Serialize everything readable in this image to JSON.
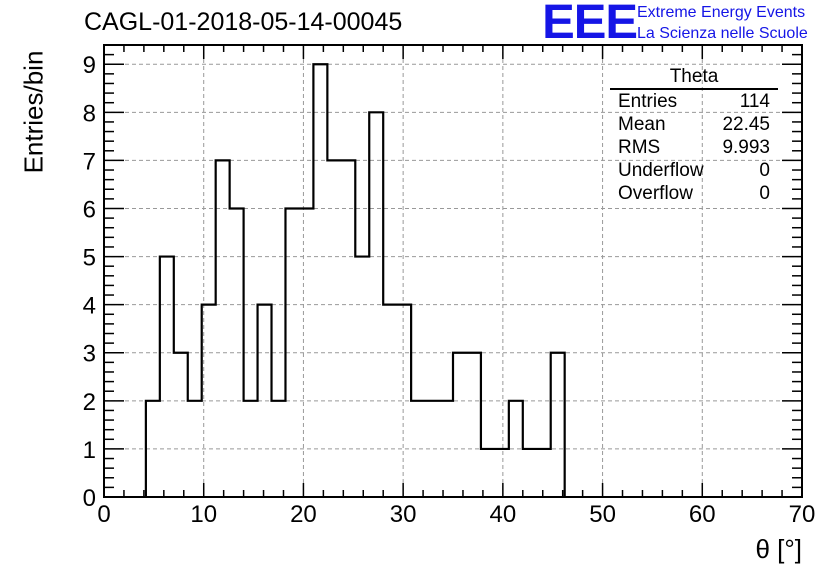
{
  "header": {
    "title": "CAGL-01-2018-05-14-00045",
    "logo_text": "EEE",
    "logo_line1": "Extreme Energy Events",
    "logo_line2": "La Scienza nelle Scuole",
    "logo_color": "#1515e6"
  },
  "stats": {
    "title": "Theta",
    "rows": [
      {
        "label": "Entries",
        "value": "114"
      },
      {
        "label": "Mean",
        "value": "22.45"
      },
      {
        "label": "RMS",
        "value": "9.993"
      },
      {
        "label": "Underflow",
        "value": "0"
      },
      {
        "label": "Overflow",
        "value": "0"
      }
    ]
  },
  "chart_data": {
    "type": "histogram",
    "title": "CAGL-01-2018-05-14-00045",
    "xlabel": "θ [°]",
    "ylabel": "Entries/bin",
    "xlim": [
      0,
      70
    ],
    "ylim": [
      0,
      9.4
    ],
    "grid": true,
    "x_ticks": [
      0,
      10,
      20,
      30,
      40,
      50,
      60,
      70
    ],
    "y_ticks": [
      0,
      1,
      2,
      3,
      4,
      5,
      6,
      7,
      8,
      9
    ],
    "bin_width": 1.4,
    "bin_edges_start": 4.2,
    "bins": [
      {
        "x0": 4.2,
        "x1": 5.6,
        "count": 2
      },
      {
        "x0": 5.6,
        "x1": 7.0,
        "count": 5
      },
      {
        "x0": 7.0,
        "x1": 8.4,
        "count": 3
      },
      {
        "x0": 8.4,
        "x1": 9.8,
        "count": 2
      },
      {
        "x0": 9.8,
        "x1": 11.2,
        "count": 4
      },
      {
        "x0": 11.2,
        "x1": 12.6,
        "count": 7
      },
      {
        "x0": 12.6,
        "x1": 14.0,
        "count": 6
      },
      {
        "x0": 14.0,
        "x1": 15.4,
        "count": 2
      },
      {
        "x0": 15.4,
        "x1": 16.8,
        "count": 4
      },
      {
        "x0": 16.8,
        "x1": 18.2,
        "count": 2
      },
      {
        "x0": 18.2,
        "x1": 21.0,
        "count": 6
      },
      {
        "x0": 21.0,
        "x1": 22.4,
        "count": 9
      },
      {
        "x0": 22.4,
        "x1": 25.2,
        "count": 7
      },
      {
        "x0": 25.2,
        "x1": 26.6,
        "count": 5
      },
      {
        "x0": 26.6,
        "x1": 28.0,
        "count": 8
      },
      {
        "x0": 28.0,
        "x1": 30.8,
        "count": 4
      },
      {
        "x0": 30.8,
        "x1": 35.0,
        "count": 2
      },
      {
        "x0": 35.0,
        "x1": 37.8,
        "count": 3
      },
      {
        "x0": 37.8,
        "x1": 40.6,
        "count": 1
      },
      {
        "x0": 40.6,
        "x1": 42.0,
        "count": 2
      },
      {
        "x0": 42.0,
        "x1": 44.8,
        "count": 1
      },
      {
        "x0": 44.8,
        "x1": 46.2,
        "count": 3
      }
    ]
  }
}
